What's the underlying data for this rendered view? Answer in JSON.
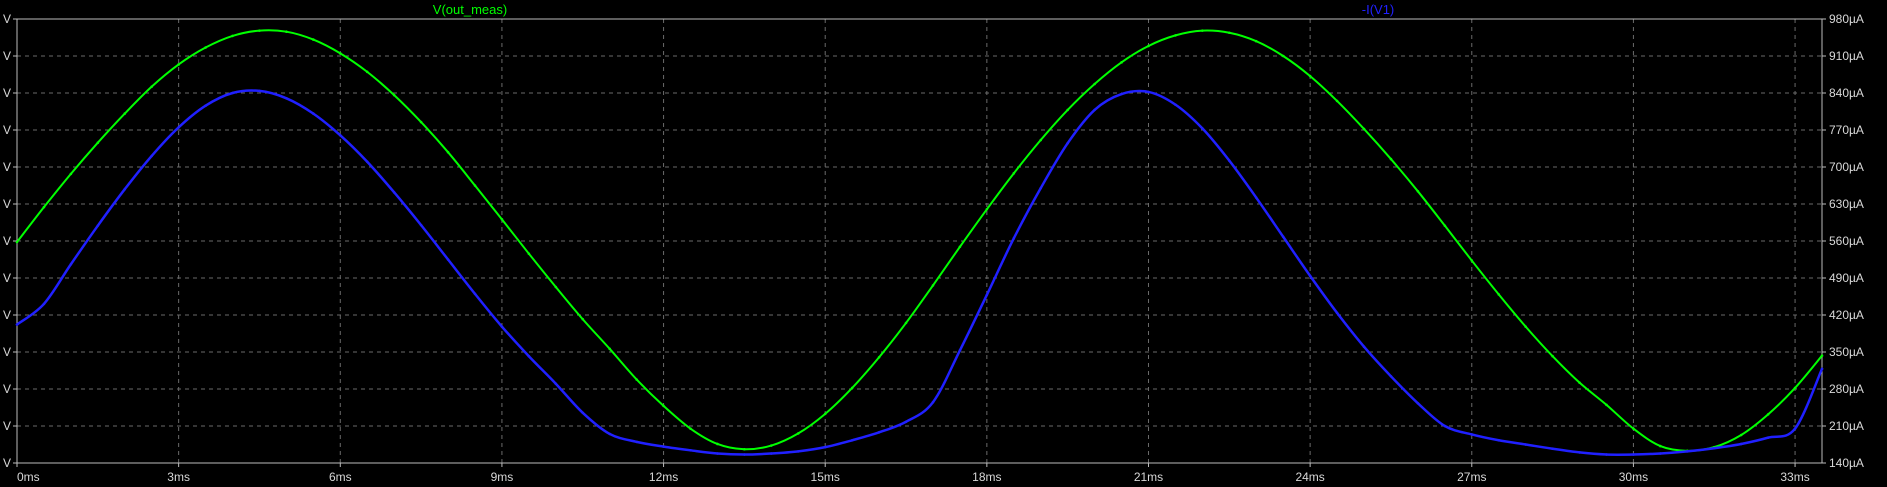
{
  "chart_data": {
    "type": "line",
    "x_unit": "ms",
    "xlim": [
      0,
      33.5
    ],
    "x_ticks": [
      0,
      3,
      6,
      9,
      12,
      15,
      18,
      21,
      24,
      27,
      30,
      33
    ],
    "x_tick_labels": [
      "0ms",
      "3ms",
      "6ms",
      "9ms",
      "12ms",
      "15ms",
      "18ms",
      "21ms",
      "24ms",
      "27ms",
      "30ms",
      "33ms"
    ],
    "left_axis": {
      "ylim": [
        0,
        12
      ],
      "ticks": [
        0,
        1,
        2,
        3,
        4,
        5,
        6,
        7,
        8,
        9,
        10,
        11,
        12
      ],
      "tick_labels": [
        "V",
        "V",
        "V",
        "V",
        "V",
        "V",
        "V",
        "V",
        "V",
        "V",
        "V",
        "V",
        "V"
      ]
    },
    "right_axis": {
      "ylim": [
        140,
        980
      ],
      "ticks": [
        140,
        210,
        280,
        350,
        420,
        490,
        560,
        630,
        700,
        770,
        840,
        910,
        980
      ],
      "tick_labels": [
        "140µA",
        "210µA",
        "280µA",
        "350µA",
        "420µA",
        "490µA",
        "560µA",
        "630µA",
        "700µA",
        "770µA",
        "840µA",
        "910µA",
        "980µA"
      ]
    },
    "grid": true,
    "legend_position": "top",
    "series": [
      {
        "name": "V(out_meas)",
        "color": "#00ff00",
        "axis": "right",
        "x": [
          0,
          0.5,
          1,
          1.5,
          2,
          2.5,
          3,
          3.5,
          4,
          4.5,
          5,
          5.5,
          6,
          6.5,
          7,
          7.5,
          8,
          8.5,
          9,
          9.5,
          10,
          10.5,
          11,
          11.5,
          12,
          12.5,
          13,
          13.5,
          14,
          14.5,
          15,
          15.5,
          16,
          16.5,
          17,
          17.5,
          18,
          18.5,
          19,
          19.5,
          20,
          20.5,
          21,
          21.5,
          22,
          22.5,
          23,
          23.5,
          24,
          24.5,
          25,
          25.5,
          26,
          26.5,
          27,
          27.5,
          28,
          28.5,
          29,
          29.5,
          30,
          30.5,
          31,
          31.5,
          32,
          32.5,
          33,
          33.5
        ],
        "values": [
          558,
          624,
          687,
          746,
          801,
          852,
          894,
          926,
          948,
          958,
          956,
          941,
          915,
          880,
          836,
          785,
          728,
          665,
          601,
          536,
          473,
          412,
          356,
          298,
          248,
          205,
          176,
          166,
          173,
          196,
          233,
          282,
          340,
          405,
          476,
          549,
          620,
          688,
          751,
          808,
          857,
          898,
          929,
          949,
          958,
          954,
          938,
          910,
          872,
          825,
          772,
          715,
          654,
          589,
          523,
          459,
          398,
          342,
          292,
          250,
          205,
          172,
          163,
          170,
          193,
          232,
          282,
          343
        ],
        "stroke_width": 2
      },
      {
        "name": "-I(V1)",
        "color": "#2020ff",
        "axis": "right",
        "x": [
          0,
          0.5,
          1,
          1.5,
          2,
          2.5,
          3,
          3.5,
          4,
          4.5,
          5,
          5.5,
          6,
          6.5,
          7,
          7.5,
          8,
          8.5,
          9,
          9.5,
          10,
          10.5,
          11,
          11.5,
          12,
          12.5,
          13,
          13.5,
          14,
          14.5,
          15,
          15.5,
          16,
          16.5,
          17,
          17.5,
          18,
          18.5,
          19,
          19.5,
          20,
          20.5,
          21,
          21.5,
          22,
          22.5,
          23,
          23.5,
          24,
          24.5,
          25,
          25.5,
          26,
          26.5,
          27,
          27.5,
          28,
          28.5,
          29,
          29.5,
          30,
          30.5,
          31,
          31.5,
          32,
          32.5,
          33,
          33.5
        ],
        "values": [
          402,
          441,
          516,
          589,
          658,
          721,
          775,
          816,
          840,
          844,
          830,
          801,
          760,
          710,
          652,
          590,
          525,
          460,
          398,
          342,
          290,
          235,
          195,
          180,
          171,
          164,
          158,
          156,
          158,
          162,
          170,
          183,
          198,
          218,
          255,
          353,
          458,
          565,
          660,
          745,
          808,
          838,
          842,
          818,
          773,
          712,
          642,
          568,
          494,
          424,
          360,
          304,
          253,
          210,
          194,
          183,
          175,
          167,
          160,
          156,
          156,
          158,
          162,
          168,
          176,
          188,
          205,
          318
        ],
        "stroke_width": 2.5
      }
    ]
  }
}
